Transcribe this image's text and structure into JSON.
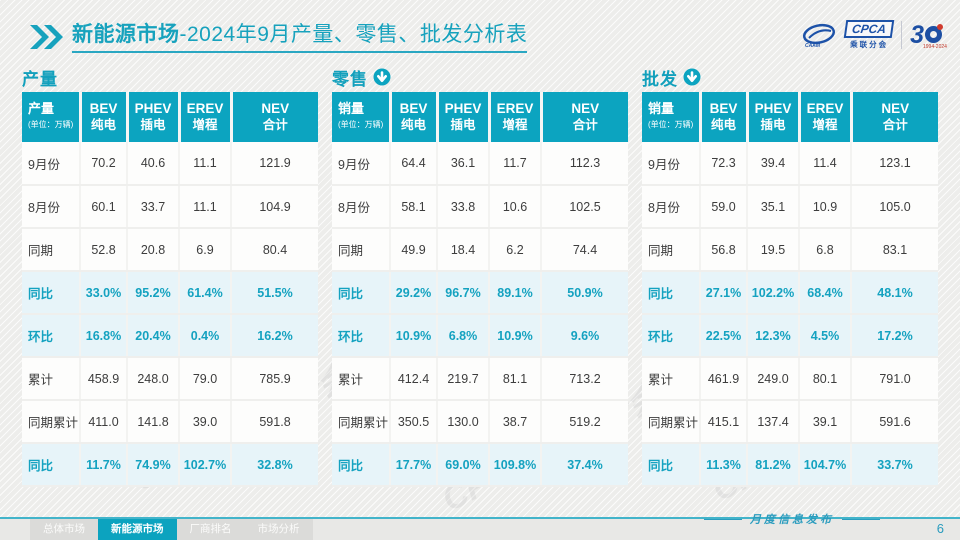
{
  "header": {
    "title_bold": "新能源市场",
    "title_rest": "-2024年9月产量、零售、批发分析表"
  },
  "logos": {
    "cpca": "CPCA",
    "cpca_sub": "乘联分会",
    "anniversary": "3",
    "years": "1994-2024"
  },
  "watermark": "CPCA 乘联分会",
  "columns": [
    {
      "en": "BEV",
      "cn": "纯电"
    },
    {
      "en": "PHEV",
      "cn": "插电"
    },
    {
      "en": "EREV",
      "cn": "增程"
    },
    {
      "en": "NEV",
      "cn": "合计"
    }
  ],
  "unit_note": "(单位：万辆)",
  "tables": [
    {
      "name": "production",
      "title": "产量",
      "has_down_icon": false,
      "corner_label": "产量",
      "rows": [
        {
          "label": "9月份",
          "values": [
            "70.2",
            "40.6",
            "11.1",
            "121.9"
          ],
          "highlight": false
        },
        {
          "label": "8月份",
          "values": [
            "60.1",
            "33.7",
            "11.1",
            "104.9"
          ],
          "highlight": false
        },
        {
          "label": "同期",
          "values": [
            "52.8",
            "20.8",
            "6.9",
            "80.4"
          ],
          "highlight": false
        },
        {
          "label": "同比",
          "values": [
            "33.0%",
            "95.2%",
            "61.4%",
            "51.5%"
          ],
          "highlight": true
        },
        {
          "label": "环比",
          "values": [
            "16.8%",
            "20.4%",
            "0.4%",
            "16.2%"
          ],
          "highlight": true
        },
        {
          "label": "累计",
          "values": [
            "458.9",
            "248.0",
            "79.0",
            "785.9"
          ],
          "highlight": false
        },
        {
          "label": "同期累计",
          "values": [
            "411.0",
            "141.8",
            "39.0",
            "591.8"
          ],
          "highlight": false
        },
        {
          "label": "同比",
          "values": [
            "11.7%",
            "74.9%",
            "102.7%",
            "32.8%"
          ],
          "highlight": true
        }
      ]
    },
    {
      "name": "retail",
      "title": "零售",
      "has_down_icon": true,
      "corner_label": "销量",
      "rows": [
        {
          "label": "9月份",
          "values": [
            "64.4",
            "36.1",
            "11.7",
            "112.3"
          ],
          "highlight": false
        },
        {
          "label": "8月份",
          "values": [
            "58.1",
            "33.8",
            "10.6",
            "102.5"
          ],
          "highlight": false
        },
        {
          "label": "同期",
          "values": [
            "49.9",
            "18.4",
            "6.2",
            "74.4"
          ],
          "highlight": false
        },
        {
          "label": "同比",
          "values": [
            "29.2%",
            "96.7%",
            "89.1%",
            "50.9%"
          ],
          "highlight": true
        },
        {
          "label": "环比",
          "values": [
            "10.9%",
            "6.8%",
            "10.9%",
            "9.6%"
          ],
          "highlight": true
        },
        {
          "label": "累计",
          "values": [
            "412.4",
            "219.7",
            "81.1",
            "713.2"
          ],
          "highlight": false
        },
        {
          "label": "同期累计",
          "values": [
            "350.5",
            "130.0",
            "38.7",
            "519.2"
          ],
          "highlight": false
        },
        {
          "label": "同比",
          "values": [
            "17.7%",
            "69.0%",
            "109.8%",
            "37.4%"
          ],
          "highlight": true
        }
      ]
    },
    {
      "name": "wholesale",
      "title": "批发",
      "has_down_icon": true,
      "corner_label": "销量",
      "rows": [
        {
          "label": "9月份",
          "values": [
            "72.3",
            "39.4",
            "11.4",
            "123.1"
          ],
          "highlight": false
        },
        {
          "label": "8月份",
          "values": [
            "59.0",
            "35.1",
            "10.9",
            "105.0"
          ],
          "highlight": false
        },
        {
          "label": "同期",
          "values": [
            "56.8",
            "19.5",
            "6.8",
            "83.1"
          ],
          "highlight": false
        },
        {
          "label": "同比",
          "values": [
            "27.1%",
            "102.2%",
            "68.4%",
            "48.1%"
          ],
          "highlight": true
        },
        {
          "label": "环比",
          "values": [
            "22.5%",
            "12.3%",
            "4.5%",
            "17.2%"
          ],
          "highlight": true
        },
        {
          "label": "累计",
          "values": [
            "461.9",
            "249.0",
            "80.1",
            "791.0"
          ],
          "highlight": false
        },
        {
          "label": "同期累计",
          "values": [
            "415.1",
            "137.4",
            "39.1",
            "591.6"
          ],
          "highlight": false
        },
        {
          "label": "同比",
          "values": [
            "11.3%",
            "81.2%",
            "104.7%",
            "33.7%"
          ],
          "highlight": true
        }
      ]
    }
  ],
  "footer": {
    "tabs": [
      {
        "label": "总体市场",
        "active": false
      },
      {
        "label": "新能源市场",
        "active": true
      },
      {
        "label": "厂商排名",
        "active": false
      },
      {
        "label": "市场分析",
        "active": false
      }
    ],
    "publish_label": "月度信息发布",
    "page": "6"
  },
  "colors": {
    "teal": "#0ca4c0",
    "highlight_bg": "#e7f4f9",
    "logo_blue": "#1d52a8"
  }
}
